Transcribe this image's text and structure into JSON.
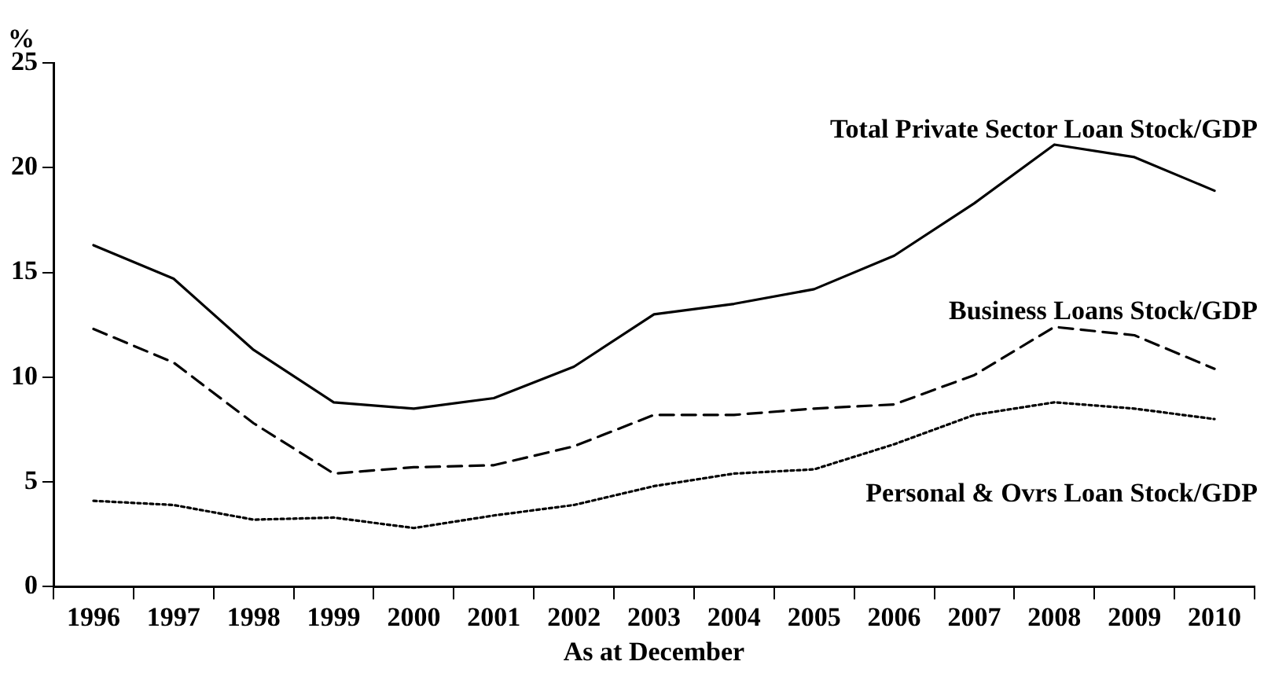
{
  "chart_data": {
    "type": "line",
    "ylabel": "%",
    "xlabel": "As at December",
    "categories": [
      "1996",
      "1997",
      "1998",
      "1999",
      "2000",
      "2001",
      "2002",
      "2003",
      "2004",
      "2005",
      "2006",
      "2007",
      "2008",
      "2009",
      "2010"
    ],
    "series": [
      {
        "name": "Total Private Sector Loan Stock/GDP",
        "color": "#000000",
        "line_style": "solid",
        "values": [
          16.3,
          14.7,
          11.3,
          8.8,
          8.5,
          9.0,
          10.5,
          13.0,
          13.5,
          14.2,
          15.8,
          18.3,
          21.1,
          20.5,
          18.9
        ]
      },
      {
        "name": "Business Loans Stock/GDP",
        "color": "#000000",
        "line_style": "dashed",
        "values": [
          12.3,
          10.7,
          7.8,
          5.4,
          5.7,
          5.8,
          6.7,
          8.2,
          8.2,
          8.5,
          8.7,
          10.1,
          12.4,
          12.0,
          10.4
        ]
      },
      {
        "name": "Personal & Ovrs Loan Stock/GDP",
        "color": "#000000",
        "line_style": "dotted",
        "values": [
          4.1,
          3.9,
          3.2,
          3.3,
          2.8,
          3.4,
          3.9,
          4.8,
          5.4,
          5.6,
          6.8,
          8.2,
          8.8,
          8.5,
          8.0
        ]
      }
    ],
    "ylim": [
      0,
      25
    ],
    "yticks": [
      0,
      5,
      10,
      15,
      20,
      25
    ],
    "grid": false,
    "legend": false,
    "marker": "none"
  }
}
